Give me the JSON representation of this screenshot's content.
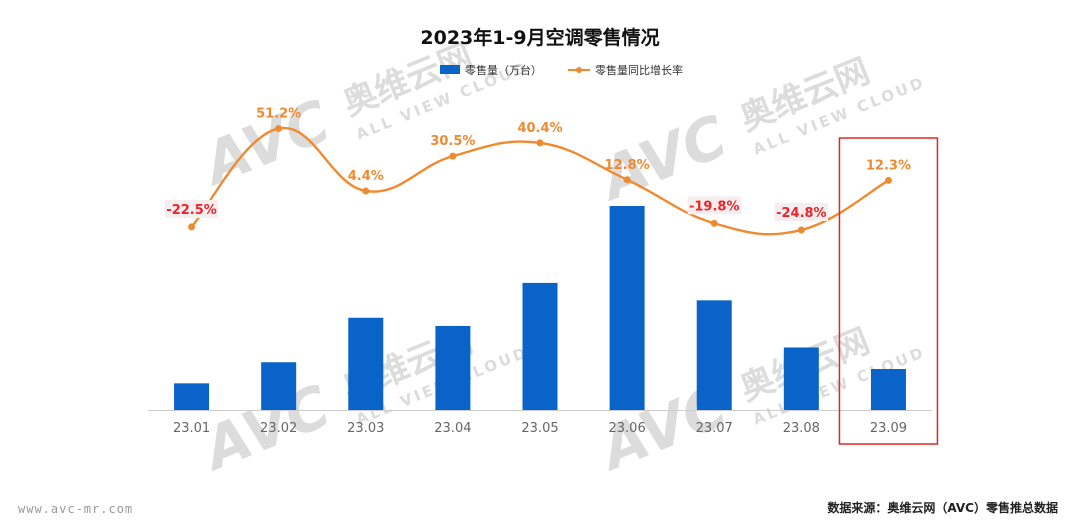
{
  "chart_data": {
    "type": "bar",
    "title": "2023年1-9月空调零售情况",
    "categories": [
      "23.01",
      "23.02",
      "23.03",
      "23.04",
      "23.05",
      "23.06",
      "23.07",
      "23.08",
      "23.09"
    ],
    "series": [
      {
        "name": "零售量（万台）",
        "type": "bar",
        "values": [
          130,
          233,
          450,
          410,
          620,
          995,
          535,
          305,
          200
        ]
      },
      {
        "name": "零售量同比增长率",
        "type": "line",
        "values": [
          -22.5,
          51.2,
          4.4,
          30.5,
          40.4,
          12.8,
          -19.8,
          -24.8,
          12.3
        ],
        "labels": [
          "-22.5%",
          "51.2%",
          "4.4%",
          "30.5%",
          "40.4%",
          "12.8%",
          "-19.8%",
          "-24.8%",
          "12.3%"
        ]
      }
    ],
    "ylim": [
      0,
      1000
    ],
    "y2lim": [
      -45,
      65
    ],
    "legend": "top-center",
    "highlight_category": "23.09"
  },
  "colors": {
    "bar": "#0a63c9",
    "line": "#f08a30",
    "label_orange": "#f08a30",
    "label_red": "#e8262b",
    "label_bg": "#f6eeee",
    "highlight_box": "#e22626",
    "axis": "#cccccc",
    "tick_text": "#666666",
    "watermark": "#dcdcdc"
  },
  "watermark": {
    "brand_cn": "奥维云网",
    "brand_en": "ALL VIEW CLOUD",
    "logo": "AVC"
  },
  "footer": {
    "url": "www.avc-mr.com",
    "source": "数据来源：奥维云网（AVC）零售推总数据"
  }
}
